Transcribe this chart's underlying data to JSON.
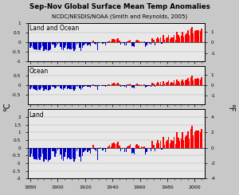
{
  "title": "Sep-Nov Global Surface Mean Temp Anomalies",
  "subtitle": "NCDC/NESDIS/NOAA (Smith and Reynolds, 2005)",
  "years": [
    1880,
    1881,
    1882,
    1883,
    1884,
    1885,
    1886,
    1887,
    1888,
    1889,
    1890,
    1891,
    1892,
    1893,
    1894,
    1895,
    1896,
    1897,
    1898,
    1899,
    1900,
    1901,
    1902,
    1903,
    1904,
    1905,
    1906,
    1907,
    1908,
    1909,
    1910,
    1911,
    1912,
    1913,
    1914,
    1915,
    1916,
    1917,
    1918,
    1919,
    1920,
    1921,
    1922,
    1923,
    1924,
    1925,
    1926,
    1927,
    1928,
    1929,
    1930,
    1931,
    1932,
    1933,
    1934,
    1935,
    1936,
    1937,
    1938,
    1939,
    1940,
    1941,
    1942,
    1943,
    1944,
    1945,
    1946,
    1947,
    1948,
    1949,
    1950,
    1951,
    1952,
    1953,
    1954,
    1955,
    1956,
    1957,
    1958,
    1959,
    1960,
    1961,
    1962,
    1963,
    1964,
    1965,
    1966,
    1967,
    1968,
    1969,
    1970,
    1971,
    1972,
    1973,
    1974,
    1975,
    1976,
    1977,
    1978,
    1979,
    1980,
    1981,
    1982,
    1983,
    1984,
    1985,
    1986,
    1987,
    1988,
    1989,
    1990,
    1991,
    1992,
    1993,
    1994,
    1995,
    1996,
    1997,
    1998,
    1999,
    2000,
    2001,
    2002,
    2003,
    2004,
    2005
  ],
  "land_ocean": [
    -0.3,
    -0.18,
    -0.28,
    -0.38,
    -0.38,
    -0.4,
    -0.35,
    -0.4,
    -0.28,
    -0.2,
    -0.45,
    -0.38,
    -0.4,
    -0.44,
    -0.4,
    -0.38,
    -0.1,
    -0.12,
    -0.3,
    -0.18,
    -0.1,
    -0.04,
    -0.22,
    -0.38,
    -0.42,
    -0.3,
    -0.14,
    -0.38,
    -0.32,
    -0.38,
    -0.38,
    -0.34,
    -0.46,
    -0.38,
    -0.1,
    -0.04,
    -0.3,
    -0.44,
    -0.28,
    -0.14,
    -0.08,
    -0.02,
    -0.14,
    -0.1,
    -0.2,
    -0.04,
    0.1,
    -0.08,
    -0.12,
    -0.4,
    -0.04,
    0.02,
    0.0,
    -0.08,
    -0.04,
    -0.14,
    -0.04,
    0.06,
    0.1,
    0.04,
    0.16,
    0.18,
    0.12,
    0.16,
    0.22,
    0.1,
    -0.12,
    -0.04,
    -0.02,
    -0.14,
    -0.16,
    0.06,
    0.08,
    0.14,
    -0.2,
    -0.18,
    -0.24,
    0.1,
    0.14,
    0.08,
    -0.04,
    0.06,
    0.02,
    0.06,
    -0.22,
    -0.14,
    -0.02,
    -0.06,
    -0.12,
    0.24,
    0.12,
    -0.14,
    0.18,
    0.28,
    0.16,
    0.26,
    -0.08,
    0.38,
    0.12,
    0.22,
    0.28,
    0.4,
    0.18,
    0.28,
    0.26,
    0.4,
    0.14,
    0.56,
    0.38,
    0.26,
    0.36,
    0.56,
    0.3,
    0.4,
    0.48,
    0.62,
    0.4,
    0.72,
    0.82,
    0.46,
    0.58,
    0.62,
    0.64,
    0.64,
    0.58,
    0.72
  ],
  "ocean": [
    -0.2,
    -0.12,
    -0.16,
    -0.22,
    -0.24,
    -0.28,
    -0.22,
    -0.26,
    -0.18,
    -0.12,
    -0.28,
    -0.22,
    -0.24,
    -0.28,
    -0.24,
    -0.22,
    -0.06,
    -0.08,
    -0.18,
    -0.12,
    -0.06,
    -0.02,
    -0.14,
    -0.22,
    -0.26,
    -0.18,
    -0.08,
    -0.22,
    -0.18,
    -0.22,
    -0.22,
    -0.2,
    -0.28,
    -0.22,
    -0.06,
    -0.02,
    -0.18,
    -0.26,
    -0.16,
    -0.08,
    -0.04,
    -0.02,
    -0.08,
    -0.06,
    -0.12,
    -0.02,
    0.06,
    -0.04,
    -0.08,
    -0.24,
    -0.02,
    0.02,
    0.0,
    -0.04,
    -0.02,
    -0.08,
    -0.02,
    0.04,
    0.06,
    0.02,
    0.1,
    0.12,
    0.08,
    0.1,
    0.14,
    0.06,
    -0.08,
    -0.02,
    -0.02,
    -0.08,
    -0.1,
    0.04,
    0.04,
    0.08,
    -0.12,
    -0.1,
    -0.14,
    0.06,
    0.08,
    0.04,
    -0.02,
    0.04,
    0.02,
    0.04,
    -0.12,
    -0.08,
    -0.02,
    -0.04,
    -0.06,
    0.14,
    0.08,
    -0.08,
    0.1,
    0.16,
    0.1,
    0.16,
    -0.04,
    0.22,
    0.08,
    0.12,
    0.16,
    0.24,
    0.1,
    0.16,
    0.14,
    0.24,
    0.08,
    0.32,
    0.22,
    0.14,
    0.2,
    0.32,
    0.16,
    0.24,
    0.28,
    0.38,
    0.22,
    0.42,
    0.5,
    0.26,
    0.34,
    0.36,
    0.38,
    0.36,
    0.32,
    0.44
  ],
  "land": [
    -0.6,
    -0.38,
    -0.58,
    -0.76,
    -0.76,
    -0.8,
    -0.7,
    -0.8,
    -0.58,
    -0.4,
    -0.88,
    -0.76,
    -0.8,
    -0.88,
    -0.8,
    -0.74,
    -0.22,
    -0.24,
    -0.6,
    -0.38,
    -0.2,
    -0.08,
    -0.46,
    -0.76,
    -0.84,
    -0.6,
    -0.28,
    -0.76,
    -0.64,
    -0.76,
    -0.76,
    -0.68,
    -0.92,
    -0.76,
    -0.22,
    -0.06,
    -0.6,
    -0.88,
    -0.56,
    -0.28,
    -0.18,
    -0.04,
    -0.28,
    -0.2,
    -0.4,
    -0.06,
    0.2,
    -0.14,
    -0.24,
    -0.78,
    -0.08,
    0.04,
    0.0,
    -0.16,
    -0.08,
    -0.28,
    -0.08,
    0.1,
    0.16,
    0.06,
    0.3,
    0.34,
    0.22,
    0.3,
    0.4,
    0.14,
    -0.22,
    -0.06,
    -0.04,
    -0.26,
    -0.3,
    0.1,
    0.14,
    0.22,
    -0.38,
    -0.32,
    -0.44,
    0.16,
    0.24,
    0.14,
    -0.06,
    0.1,
    0.04,
    0.1,
    -0.42,
    -0.28,
    -0.04,
    -0.1,
    -0.22,
    0.42,
    0.18,
    -0.24,
    0.3,
    0.5,
    0.26,
    0.44,
    -0.14,
    0.68,
    0.2,
    0.4,
    0.5,
    0.72,
    0.3,
    0.5,
    0.44,
    0.7,
    0.22,
    1.02,
    0.64,
    0.42,
    0.58,
    1.0,
    0.5,
    0.68,
    0.8,
    1.08,
    0.6,
    1.24,
    1.44,
    0.8,
    1.0,
    1.1,
    1.12,
    1.1,
    1.0,
    1.24
  ],
  "xlim": [
    1878,
    2007
  ],
  "xticks": [
    1880,
    1900,
    1920,
    1940,
    1960,
    1980,
    2000
  ],
  "color_pos": "#FF0000",
  "color_neg": "#0000CC",
  "fig_bg": "#C8C8C8",
  "panel_bg": "#E8E8E8",
  "ylabel_left": "°C",
  "ylabel_right": "°F",
  "panels": [
    {
      "label": "Land and Ocean",
      "key": "land_ocean",
      "ylim": [
        -1.0,
        1.0
      ],
      "yticks_left": [
        1.0,
        0.5,
        0.0,
        -0.5,
        -1.0
      ],
      "yticks_right": [
        1.0,
        0.0,
        -1.0
      ],
      "right_ylim": [
        -1.8,
        1.8
      ]
    },
    {
      "label": "Ocean",
      "key": "ocean",
      "ylim": [
        -1.0,
        1.0
      ],
      "yticks_left": [
        0.5,
        0.0,
        -0.5
      ],
      "yticks_right": [
        1.0,
        0.0,
        -1.0
      ],
      "right_ylim": [
        -1.8,
        1.8
      ]
    },
    {
      "label": "Land",
      "key": "land",
      "ylim": [
        -2.0,
        2.5
      ],
      "yticks_left": [
        2.0,
        1.5,
        1.0,
        0.5,
        0.0,
        -0.5,
        -1.0,
        -1.5,
        -2.0
      ],
      "yticks_right": [
        4.0,
        2.0,
        0.0,
        -2.0,
        -4.0
      ],
      "right_ylim": [
        -4.0,
        5.0
      ]
    }
  ]
}
